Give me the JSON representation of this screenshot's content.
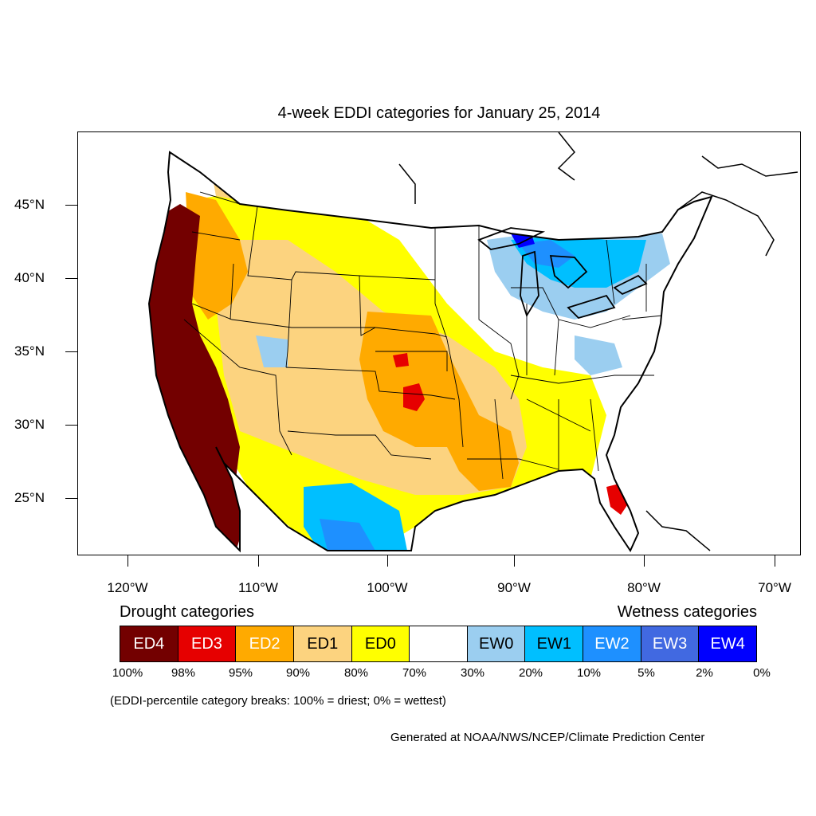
{
  "title": "4-week EDDI categories for January 25, 2014",
  "map": {
    "lat_labels": [
      "45°N",
      "40°N",
      "35°N",
      "30°N",
      "25°N"
    ],
    "lon_labels": [
      "120°W",
      "110°W",
      "100°W",
      "90°W",
      "80°W",
      "70°W"
    ],
    "region": "Contiguous United States"
  },
  "legend": {
    "drought_heading": "Drought categories",
    "wetness_heading": "Wetness categories",
    "categories": [
      {
        "label": "ED4",
        "color": "#730000",
        "text_color": "#ffffff"
      },
      {
        "label": "ED3",
        "color": "#e60000",
        "text_color": "#ffffff"
      },
      {
        "label": "ED2",
        "color": "#ffaa00",
        "text_color": "#ffffff"
      },
      {
        "label": "ED1",
        "color": "#fcd37f",
        "text_color": "#000000"
      },
      {
        "label": "ED0",
        "color": "#ffff00",
        "text_color": "#000000"
      },
      {
        "label": "",
        "color": "#ffffff",
        "text_color": "#000000"
      },
      {
        "label": "EW0",
        "color": "#9bcef0",
        "text_color": "#000000"
      },
      {
        "label": "EW1",
        "color": "#00bfff",
        "text_color": "#000000"
      },
      {
        "label": "EW2",
        "color": "#1e90ff",
        "text_color": "#ffffff"
      },
      {
        "label": "EW3",
        "color": "#4169e1",
        "text_color": "#ffffff"
      },
      {
        "label": "EW4",
        "color": "#0000ff",
        "text_color": "#ffffff"
      }
    ],
    "breaks": [
      "100%",
      "98%",
      "95%",
      "90%",
      "80%",
      "70%",
      "30%",
      "20%",
      "10%",
      "5%",
      "2%",
      "0%"
    ]
  },
  "note": "(EDDI-percentile category breaks: 100% = driest; 0% = wettest)",
  "credit": "Generated at NOAA/NWS/NCEP/Climate Prediction Center"
}
